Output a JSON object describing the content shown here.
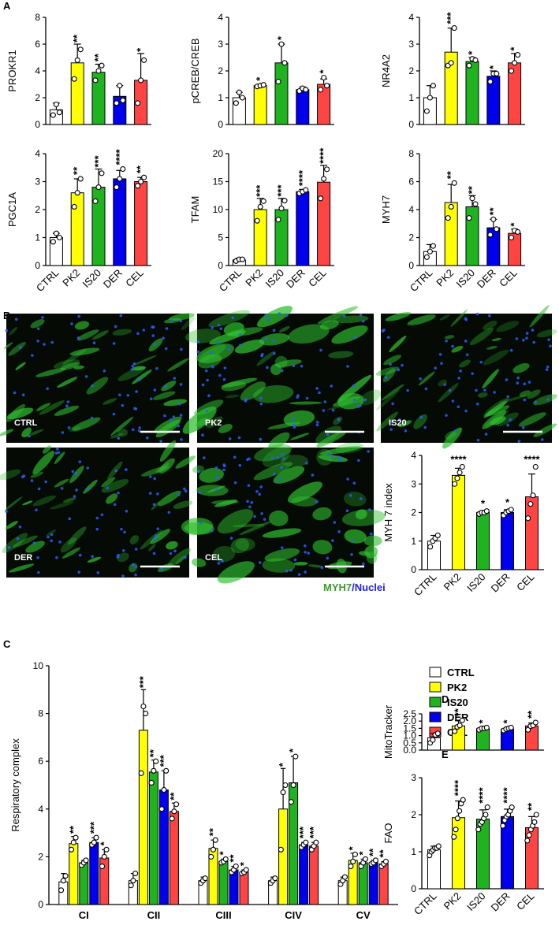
{
  "panel_labels": [
    "A",
    "B",
    "C",
    "D",
    "E"
  ],
  "images": {
    "labels": [
      "CTRL",
      "PK2",
      "IS20",
      "DER",
      "CEL"
    ],
    "caption": [
      "MYH7",
      "/Nuclei"
    ]
  },
  "chart_data": [
    {
      "type": "bar",
      "ylabel": "PROKR1",
      "colors": [
        "#ffffff",
        "#ffff00",
        "#1fb31f",
        "#0000ee",
        "#ff4444"
      ],
      "categories": [
        null,
        null,
        null,
        null,
        null
      ],
      "values": [
        1.1,
        4.6,
        3.9,
        2.1,
        3.3
      ],
      "errors": [
        0.5,
        1.4,
        0.6,
        0.8,
        2.0
      ],
      "significance": [
        null,
        "**",
        "**",
        null,
        "*"
      ],
      "points": [
        [
          0.7,
          1.5,
          0.9
        ],
        [
          3.4,
          4.8,
          5.6
        ],
        [
          3.3,
          4.0,
          4.4
        ],
        [
          1.6,
          2.9,
          1.8
        ],
        [
          1.6,
          3.3,
          4.8
        ]
      ],
      "ylim": [
        0,
        8
      ],
      "yticks": [
        0,
        2,
        4,
        6,
        8
      ]
    },
    {
      "type": "bar",
      "ylabel": "pCREB/CREB",
      "colors": [
        "#ffffff",
        "#ffff00",
        "#1fb31f",
        "#0000ee",
        "#ff4444"
      ],
      "categories": [
        null,
        null,
        null,
        null,
        null
      ],
      "values": [
        1.0,
        1.45,
        2.3,
        1.3,
        1.5
      ],
      "errors": [
        0.2,
        0.05,
        0.7,
        0.1,
        0.2
      ],
      "significance": [
        null,
        "*",
        "*",
        null,
        "*"
      ],
      "points": [
        [
          0.8,
          1.2,
          1.0
        ],
        [
          1.42,
          1.45,
          1.48
        ],
        [
          1.6,
          3.0,
          2.3
        ],
        [
          1.25,
          1.35,
          1.3
        ],
        [
          1.3,
          1.75,
          1.45
        ]
      ],
      "ylim": [
        0,
        4
      ],
      "yticks": [
        0,
        1,
        2,
        3,
        4
      ]
    },
    {
      "type": "bar",
      "ylabel": "NR4A2",
      "colors": [
        "#ffffff",
        "#ffff00",
        "#1fb31f",
        "#0000ee",
        "#ff4444"
      ],
      "categories": [
        null,
        null,
        null,
        null,
        null
      ],
      "values": [
        1.0,
        2.7,
        2.35,
        1.8,
        2.3
      ],
      "errors": [
        0.45,
        0.9,
        0.15,
        0.2,
        0.35
      ],
      "significance": [
        null,
        "***",
        "*",
        "*",
        "*"
      ],
      "points": [
        [
          0.5,
          1.0,
          1.45
        ],
        [
          2.2,
          2.3,
          3.6
        ],
        [
          2.2,
          2.45,
          2.4
        ],
        [
          1.6,
          1.9,
          1.9
        ],
        [
          2.0,
          2.3,
          2.6
        ]
      ],
      "ylim": [
        0,
        4
      ],
      "yticks": [
        0,
        1,
        2,
        3,
        4
      ]
    },
    {
      "type": "bar",
      "ylabel": "PGC1A",
      "colors": [
        "#ffffff",
        "#ffff00",
        "#1fb31f",
        "#0000ee",
        "#ff4444"
      ],
      "categories": [
        "CTRL",
        "PK2",
        "IS20",
        "DER",
        "CEL"
      ],
      "values": [
        1.0,
        2.6,
        2.8,
        3.1,
        3.0
      ],
      "errors": [
        0.15,
        0.5,
        0.65,
        0.3,
        0.15
      ],
      "significance": [
        null,
        "**",
        "***",
        "****",
        "**"
      ],
      "points": [
        [
          0.85,
          1.15,
          1.0
        ],
        [
          2.1,
          2.6,
          3.1
        ],
        [
          2.3,
          2.8,
          3.3
        ],
        [
          2.8,
          3.1,
          3.45
        ],
        [
          2.85,
          3.0,
          3.15
        ]
      ],
      "ylim": [
        0,
        4
      ],
      "yticks": [
        0,
        1,
        2,
        3,
        4
      ]
    },
    {
      "type": "bar",
      "ylabel": "TFAM",
      "colors": [
        "#ffffff",
        "#ffff00",
        "#1fb31f",
        "#0000ee",
        "#ff4444"
      ],
      "categories": [
        "CTRL",
        "PK2",
        "IS20",
        "DER",
        "CEL"
      ],
      "values": [
        1.0,
        10.0,
        10.0,
        13.2,
        14.9
      ],
      "errors": [
        0.3,
        2.0,
        2.0,
        0.4,
        3.0
      ],
      "significance": [
        null,
        "***",
        "***",
        "****",
        "****"
      ],
      "points": [
        [
          0.8,
          1.1,
          1.1
        ],
        [
          8.0,
          10.5,
          11.5
        ],
        [
          8.2,
          10.2,
          11.6
        ],
        [
          12.9,
          13.2,
          13.5
        ],
        [
          12.0,
          15.5,
          17.2
        ]
      ],
      "ylim": [
        0,
        20
      ],
      "yticks": [
        0,
        5,
        10,
        15,
        20
      ]
    },
    {
      "type": "bar",
      "ylabel": "MYH7",
      "colors": [
        "#ffffff",
        "#ffff00",
        "#1fb31f",
        "#0000ee",
        "#ff4444"
      ],
      "categories": [
        "CTRL",
        "PK2",
        "IS20",
        "DER",
        "CEL"
      ],
      "values": [
        1.0,
        4.5,
        4.2,
        2.7,
        2.3
      ],
      "errors": [
        0.5,
        1.3,
        0.8,
        0.6,
        0.3
      ],
      "significance": [
        null,
        "**",
        "**",
        "**",
        "*"
      ],
      "points": [
        [
          0.6,
          1.0,
          1.4
        ],
        [
          3.4,
          4.2,
          5.9
        ],
        [
          3.4,
          4.8,
          4.4
        ],
        [
          2.2,
          3.3,
          2.6
        ],
        [
          2.0,
          2.5,
          2.4
        ]
      ],
      "ylim": [
        0,
        8
      ],
      "yticks": [
        0,
        2,
        4,
        6,
        8
      ]
    },
    {
      "type": "bar",
      "ylabel": "MYH 7 index",
      "colors": [
        "#ffffff",
        "#ffff00",
        "#1fb31f",
        "#0000ee",
        "#ff4444"
      ],
      "categories": [
        "CTRL",
        "PK2",
        "IS20",
        "DER",
        "CEL"
      ],
      "values": [
        1.0,
        3.3,
        2.0,
        2.0,
        2.55
      ],
      "errors": [
        0.2,
        0.25,
        0.05,
        0.1,
        0.8
      ],
      "significance": [
        null,
        "****",
        "*",
        "*",
        "****"
      ],
      "points": [
        [
          0.8,
          1.0,
          1.1,
          1.2
        ],
        [
          3.0,
          3.2,
          3.4,
          3.6
        ],
        [
          1.95,
          2.0,
          2.0,
          2.05
        ],
        [
          1.9,
          2.0,
          2.05,
          2.1
        ],
        [
          1.8,
          2.3,
          2.6,
          3.6
        ]
      ],
      "ylim": [
        0,
        4
      ],
      "yticks": [
        0,
        1,
        2,
        3,
        4
      ]
    },
    {
      "type": "grouped_bar",
      "ylabel": "Respiratory complex",
      "legend": "upper right",
      "categories": [
        "CI",
        "CII",
        "CIII",
        "CIV",
        "CV"
      ],
      "ylim": [
        0,
        10
      ],
      "yticks": [
        0,
        2,
        4,
        6,
        8,
        10
      ],
      "series": [
        {
          "name": "CTRL",
          "color": "#ffffff",
          "values": [
            0.95,
            1.0,
            1.0,
            1.0,
            1.0
          ],
          "errors": [
            0.35,
            0.3,
            0.15,
            0.15,
            0.15
          ],
          "significance": [
            null,
            null,
            null,
            null,
            null
          ],
          "points": [
            [
              0.6,
              1.0,
              1.2
            ],
            [
              0.8,
              1.0,
              1.3
            ],
            [
              0.9,
              1.0,
              1.1
            ],
            [
              0.9,
              1.0,
              1.1
            ],
            [
              0.85,
              1.0,
              1.15
            ]
          ]
        },
        {
          "name": "PK2",
          "color": "#ffff00",
          "values": [
            2.55,
            7.3,
            2.35,
            4.0,
            1.85
          ],
          "errors": [
            0.3,
            1.7,
            0.35,
            1.7,
            0.3
          ],
          "significance": [
            "**",
            "***",
            "**",
            "*",
            "*"
          ],
          "points": [
            [
              2.3,
              2.6,
              2.8
            ],
            [
              5.5,
              8.3,
              8.0
            ],
            [
              2.0,
              2.3,
              2.7
            ],
            [
              2.3,
              4.7,
              5.0
            ],
            [
              1.6,
              1.8,
              2.1
            ]
          ]
        },
        {
          "name": "IS20",
          "color": "#1fb31f",
          "values": [
            1.75,
            5.55,
            1.8,
            5.1,
            1.75
          ],
          "errors": [
            0.1,
            0.5,
            0.1,
            1.1,
            0.15
          ],
          "significance": [
            null,
            "**",
            "*",
            "*",
            "*"
          ],
          "points": [
            [
              1.65,
              1.75,
              1.85
            ],
            [
              5.1,
              5.6,
              6.0
            ],
            [
              1.75,
              1.8,
              1.9
            ],
            [
              4.3,
              5.0,
              6.2
            ],
            [
              1.6,
              1.75,
              1.9
            ]
          ]
        },
        {
          "name": "DER",
          "color": "#0000ee",
          "values": [
            2.6,
            4.8,
            1.45,
            2.5,
            1.75
          ],
          "errors": [
            0.2,
            0.8,
            0.15,
            0.1,
            0.1
          ],
          "significance": [
            "***",
            "***",
            "**",
            "***",
            "**"
          ],
          "points": [
            [
              2.5,
              2.6,
              2.8
            ],
            [
              4.0,
              4.8,
              5.6
            ],
            [
              1.35,
              1.45,
              1.6
            ],
            [
              2.4,
              2.5,
              2.6
            ],
            [
              1.7,
              1.75,
              1.85
            ]
          ]
        },
        {
          "name": "CEL",
          "color": "#ff4444",
          "values": [
            1.95,
            3.9,
            1.35,
            2.45,
            1.7
          ],
          "errors": [
            0.35,
            0.35,
            0.1,
            0.15,
            0.1
          ],
          "significance": [
            "*",
            "**",
            "*",
            "***",
            "**"
          ],
          "points": [
            [
              1.6,
              2.0,
              2.3
            ],
            [
              3.6,
              3.9,
              4.2
            ],
            [
              1.3,
              1.35,
              1.45
            ],
            [
              2.3,
              2.45,
              2.6
            ],
            [
              1.6,
              1.7,
              1.8
            ]
          ]
        }
      ]
    },
    {
      "type": "bar",
      "ylabel": "MitoTracker",
      "colors": [
        "#ffffff",
        "#ffff00",
        "#1fb31f",
        "#0000ee",
        "#ff4444"
      ],
      "categories": [
        null,
        null,
        null,
        null,
        null
      ],
      "values": [
        0.85,
        1.67,
        1.48,
        1.45,
        1.67
      ],
      "errors": [
        0.3,
        0.35,
        0.08,
        0.1,
        0.2
      ],
      "significance": [
        null,
        "**",
        "*",
        "*",
        "**"
      ],
      "points": [
        [
          0.5,
          0.7,
          1.05,
          1.15
        ],
        [
          1.3,
          1.6,
          1.7,
          2.05
        ],
        [
          1.4,
          1.5,
          1.5,
          1.55
        ],
        [
          1.35,
          1.45,
          1.5,
          1.55
        ],
        [
          1.4,
          1.65,
          1.7,
          1.9
        ]
      ],
      "ylim": [
        0,
        2.5
      ],
      "yticks": [
        {
          "value": 0,
          "label": "0.0"
        },
        0.5,
        {
          "value": 1,
          "label": "1.0"
        },
        1.5,
        {
          "value": 2,
          "label": "2.0"
        },
        2.5
      ]
    },
    {
      "type": "bar",
      "ylabel": "FAO",
      "colors": [
        "#ffffff",
        "#ffff00",
        "#1fb31f",
        "#0000ee",
        "#ff4444"
      ],
      "categories": [
        "CTRL",
        "PK2",
        "IS20",
        "DER",
        "CEL"
      ],
      "values": [
        1.05,
        1.92,
        1.88,
        1.95,
        1.65
      ],
      "errors": [
        0.1,
        0.45,
        0.25,
        0.2,
        0.3
      ],
      "significance": [
        null,
        "****",
        "****",
        "****",
        "**"
      ],
      "points": [
        [
          0.9,
          1.0,
          1.05,
          1.1,
          1.1,
          1.15
        ],
        [
          1.4,
          1.6,
          1.9,
          2.1,
          2.3,
          2.4
        ],
        [
          1.6,
          1.75,
          1.8,
          1.9,
          2.0,
          2.2
        ],
        [
          1.7,
          1.85,
          1.95,
          2.0,
          2.1,
          2.2
        ],
        [
          1.3,
          1.45,
          1.6,
          1.7,
          1.8,
          2.0
        ]
      ],
      "ylim": [
        0,
        3
      ],
      "yticks": [
        0,
        1,
        2,
        3
      ]
    }
  ]
}
